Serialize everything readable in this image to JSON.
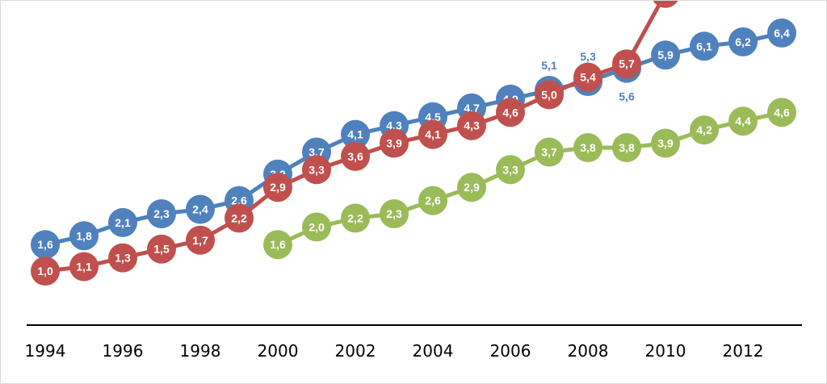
{
  "chart_data": {
    "type": "line",
    "title": "",
    "xlabel": "",
    "ylabel": "",
    "x_ticks": [
      "1994",
      "1996",
      "1998",
      "2000",
      "2002",
      "2004",
      "2006",
      "2008",
      "2010",
      "2012"
    ],
    "xlim": [
      1993.5,
      2013.5
    ],
    "ylim": [
      0.5,
      7.1
    ],
    "grid": false,
    "legend": "none",
    "series": [
      {
        "color": "#4f81bd",
        "points": [
          {
            "x": 1994,
            "y": 1.6,
            "label": "1,6"
          },
          {
            "x": 1995,
            "y": 1.8,
            "label": "1,8"
          },
          {
            "x": 1996,
            "y": 2.1,
            "label": "2,1"
          },
          {
            "x": 1997,
            "y": 2.3,
            "label": "2,3"
          },
          {
            "x": 1998,
            "y": 2.4,
            "label": "2,4"
          },
          {
            "x": 1999,
            "y": 2.6,
            "label": "2,6"
          },
          {
            "x": 2000,
            "y": 3.2,
            "label": "3,2"
          },
          {
            "x": 2001,
            "y": 3.7,
            "label": "3,7"
          },
          {
            "x": 2002,
            "y": 4.1,
            "label": "4,1"
          },
          {
            "x": 2003,
            "y": 4.3,
            "label": "4,3"
          },
          {
            "x": 2004,
            "y": 4.5,
            "label": "4,5"
          },
          {
            "x": 2005,
            "y": 4.7,
            "label": "4,7"
          },
          {
            "x": 2006,
            "y": 4.9,
            "label": "4,9"
          },
          {
            "x": 2007,
            "y": 5.1,
            "label": "5,1",
            "label_outside": "above"
          },
          {
            "x": 2008,
            "y": 5.3,
            "label": "5,3",
            "label_outside": "above"
          },
          {
            "x": 2009,
            "y": 5.6,
            "label": "5,6",
            "label_outside": "below"
          },
          {
            "x": 2010,
            "y": 5.9,
            "label": "5,9"
          },
          {
            "x": 2011,
            "y": 6.1,
            "label": "6,1"
          },
          {
            "x": 2012,
            "y": 6.2,
            "label": "6,2"
          },
          {
            "x": 2013,
            "y": 6.4,
            "label": "6,4"
          }
        ]
      },
      {
        "color": "#c0504d",
        "points": [
          {
            "x": 1994,
            "y": 1.0,
            "label": "1,0"
          },
          {
            "x": 1995,
            "y": 1.1,
            "label": "1,1"
          },
          {
            "x": 1996,
            "y": 1.3,
            "label": "1,3"
          },
          {
            "x": 1997,
            "y": 1.5,
            "label": "1,5"
          },
          {
            "x": 1998,
            "y": 1.7,
            "label": "1,7"
          },
          {
            "x": 1999,
            "y": 2.2,
            "label": "2,2"
          },
          {
            "x": 2000,
            "y": 2.9,
            "label": "2,9"
          },
          {
            "x": 2001,
            "y": 3.3,
            "label": "3,3"
          },
          {
            "x": 2002,
            "y": 3.6,
            "label": "3,6"
          },
          {
            "x": 2003,
            "y": 3.9,
            "label": "3,9"
          },
          {
            "x": 2004,
            "y": 4.1,
            "label": "4,1"
          },
          {
            "x": 2005,
            "y": 4.3,
            "label": "4,3"
          },
          {
            "x": 2006,
            "y": 4.6,
            "label": "4,6"
          },
          {
            "x": 2007,
            "y": 5.0,
            "label": "5,0"
          },
          {
            "x": 2008,
            "y": 5.4,
            "label": "5,4"
          },
          {
            "x": 2009,
            "y": 5.7,
            "label": "5,7"
          },
          {
            "x": 2010,
            "y": 7.3,
            "label": ""
          }
        ]
      },
      {
        "color": "#9bbb59",
        "points": [
          {
            "x": 2000,
            "y": 1.6,
            "label": "1,6"
          },
          {
            "x": 2001,
            "y": 2.0,
            "label": "2,0"
          },
          {
            "x": 2002,
            "y": 2.2,
            "label": "2,2"
          },
          {
            "x": 2003,
            "y": 2.3,
            "label": "2,3"
          },
          {
            "x": 2004,
            "y": 2.6,
            "label": "2,6"
          },
          {
            "x": 2005,
            "y": 2.9,
            "label": "2,9"
          },
          {
            "x": 2006,
            "y": 3.3,
            "label": "3,3"
          },
          {
            "x": 2007,
            "y": 3.7,
            "label": "3,7"
          },
          {
            "x": 2008,
            "y": 3.8,
            "label": "3,8"
          },
          {
            "x": 2009,
            "y": 3.8,
            "label": "3,8"
          },
          {
            "x": 2010,
            "y": 3.9,
            "label": "3,9"
          },
          {
            "x": 2011,
            "y": 4.2,
            "label": "4,2"
          },
          {
            "x": 2012,
            "y": 4.4,
            "label": "4,4"
          },
          {
            "x": 2013,
            "y": 4.6,
            "label": "4,6"
          }
        ]
      }
    ]
  }
}
